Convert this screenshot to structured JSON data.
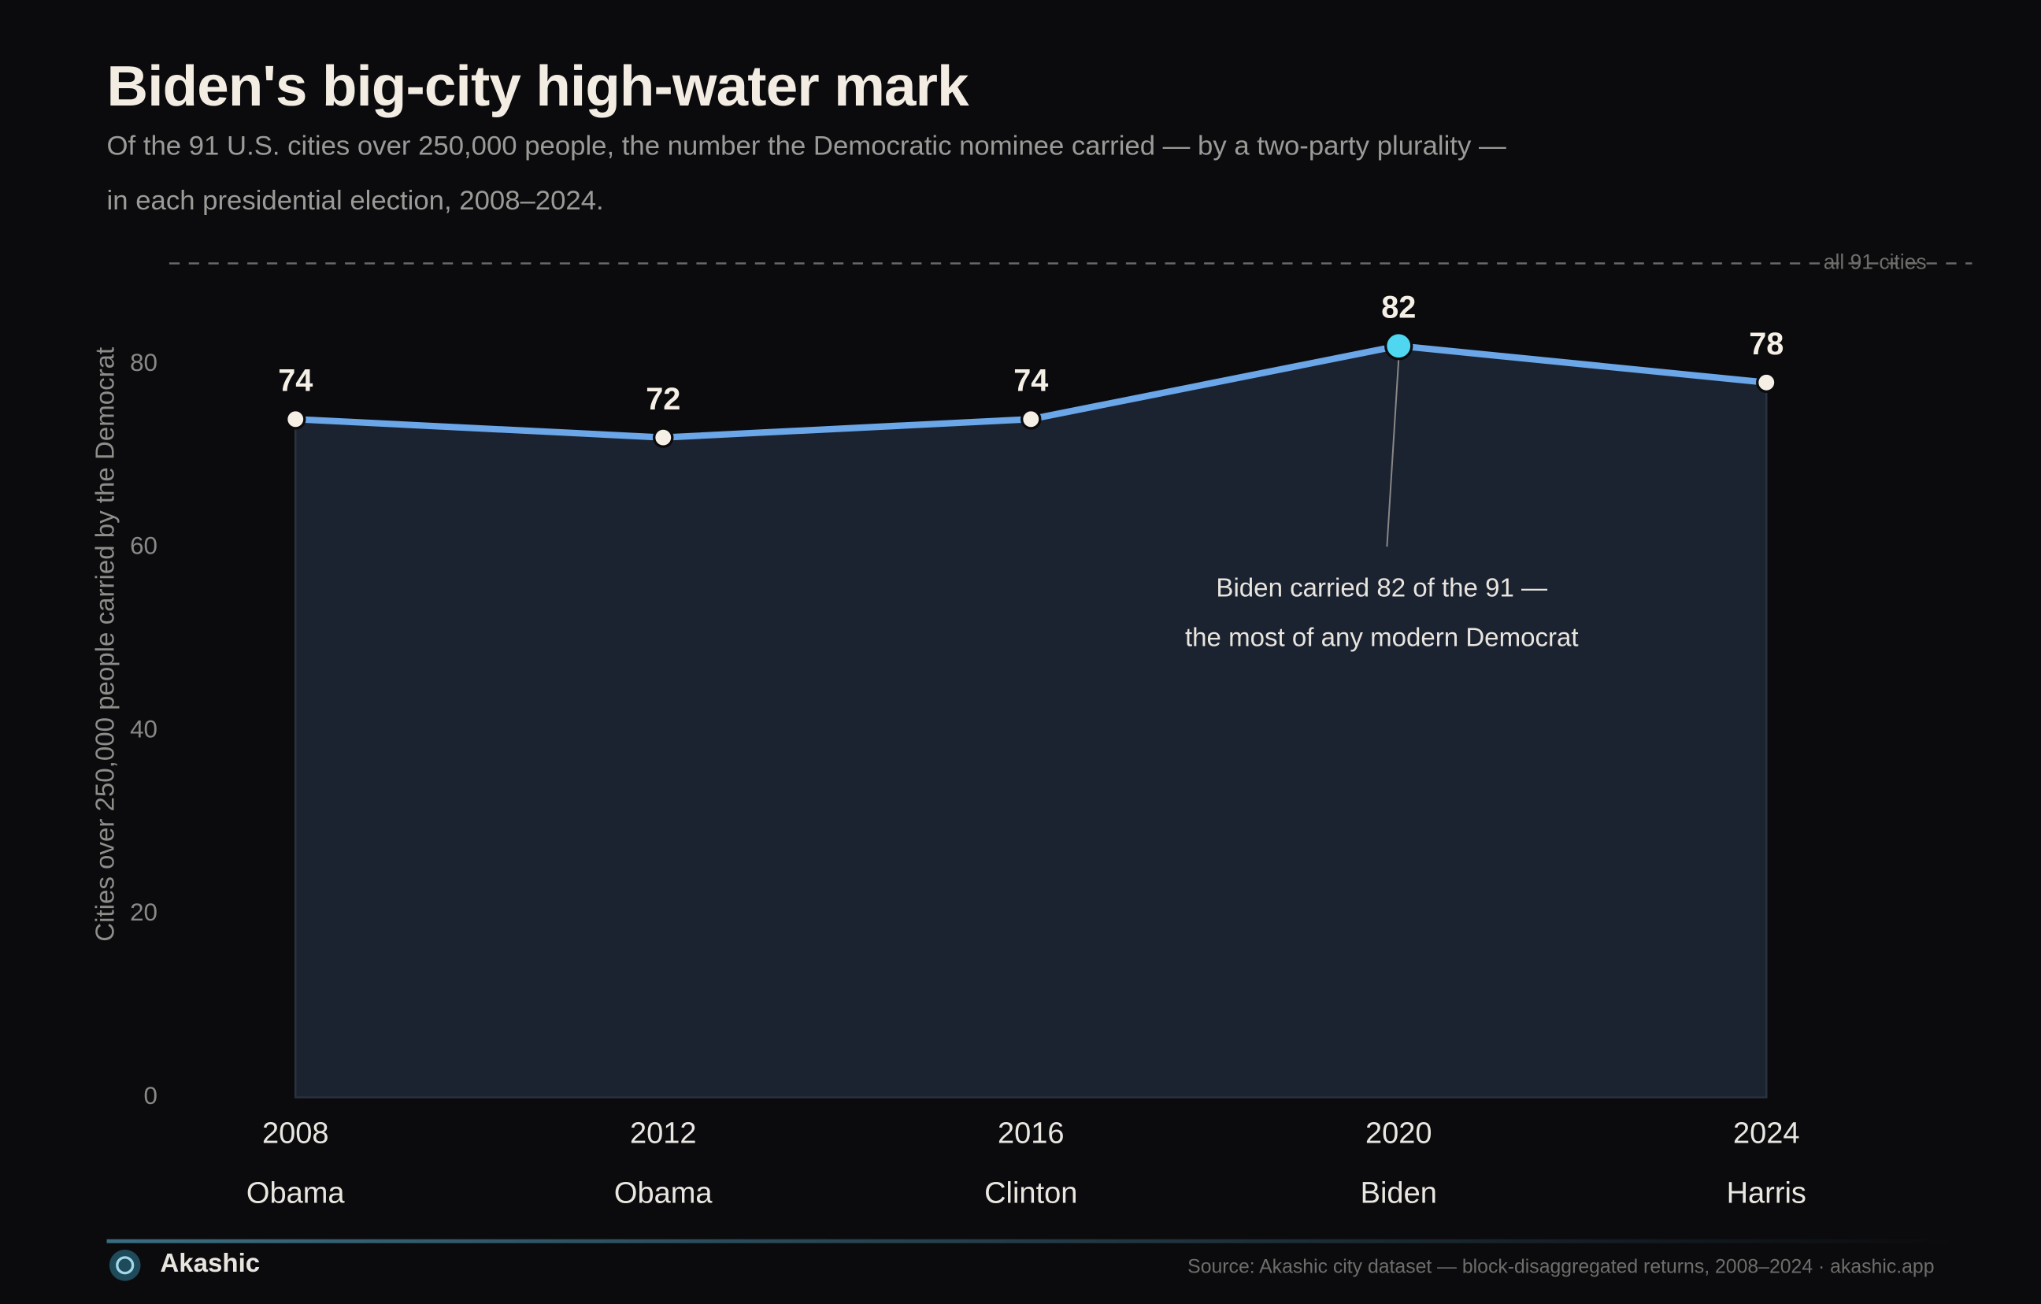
{
  "chart_data": {
    "type": "area-line",
    "title": "Biden's big-city high-water mark",
    "subtitle": "Of the 91 U.S. cities over 250,000 people, the number the Democratic nominee carried — by a two-party plurality — in each presidential election, 2008–2024.",
    "y_label": "Cities over 250,000 people carried by the Democrat",
    "x": [
      2008,
      2012,
      2016,
      2020,
      2024
    ],
    "nominees": [
      "Obama",
      "Obama",
      "Clinton",
      "Biden",
      "Harris"
    ],
    "values": [
      74,
      72,
      74,
      82,
      78
    ],
    "color": "#6aa6e8",
    "area_color": "#1b2230",
    "highlight": 2020,
    "highlight_color": "#4fd6f0",
    "annotation": [
      "Biden carried 82 of the 91 —",
      "the most of any modern Democrat"
    ],
    "reference_line": {
      "value": 91,
      "label": "all 91 cities"
    },
    "xlim": [
      2008,
      2024
    ],
    "ylim": [
      0,
      92
    ],
    "yticks": [
      0,
      20,
      40,
      60,
      80
    ]
  },
  "footer": {
    "brand": "Akashic",
    "source": "Source: Akashic city dataset — block-disaggregated returns, 2008–2024 · akashic.app"
  }
}
